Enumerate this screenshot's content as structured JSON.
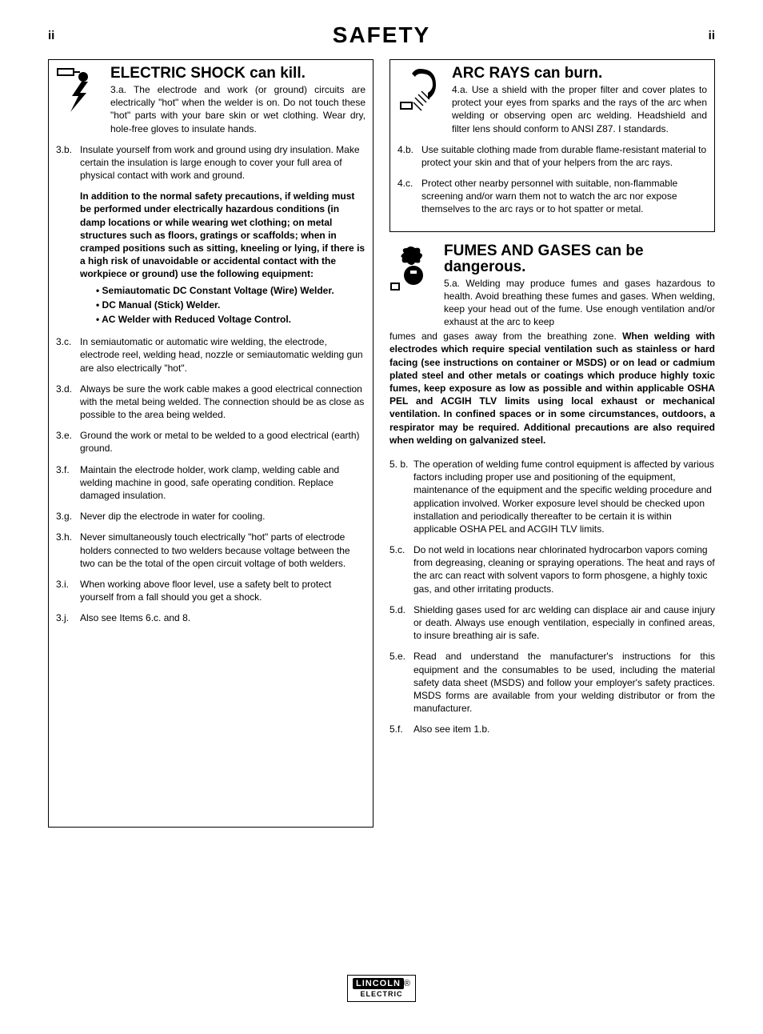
{
  "header": {
    "left": "ii",
    "title": "SAFETY",
    "right": "ii"
  },
  "left": {
    "shock": {
      "title": "ELECTRIC SHOCK can kill.",
      "items": [
        {
          "num": "3.a.",
          "text": "The electrode and work (or ground) circuits are electrically \"hot\" when the welder is on. Do not touch these \"hot\" parts with your bare skin or wet clothing. Wear dry, hole-free gloves to insulate hands."
        },
        {
          "num": "3.b.",
          "text": "Insulate yourself from work and ground using dry insulation. Make certain the insulation is large enough to cover your full area of physical contact with work and ground."
        },
        {
          "bold": true,
          "text": "In addition to the normal safety precautions, if welding must be performed under electrically hazardous conditions (in damp locations or while wearing wet clothing; on metal structures such as floors, gratings or scaffolds; when in cramped positions such as sitting, kneeling or lying, if there is a high risk of unavoidable or accidental contact with the workpiece or ground) use the following equipment:",
          "bullets": [
            "• Semiautomatic DC Constant Voltage (Wire) Welder.",
            "• DC Manual (Stick) Welder.",
            "• AC Welder with Reduced Voltage Control."
          ]
        },
        {
          "num": "3.c.",
          "text": "In semiautomatic or automatic wire welding, the electrode, electrode reel, welding head, nozzle or semiautomatic welding gun are also electrically \"hot\"."
        },
        {
          "num": "3.d.",
          "text": "Always be sure the work cable makes a good electrical connection with the metal being welded. The connection should be as close as possible to the area being welded."
        },
        {
          "num": "3.e.",
          "text": "Ground the work or metal to be welded to a good electrical (earth) ground."
        },
        {
          "num": "3.f.",
          "text": "Maintain the electrode holder, work clamp, welding cable  and welding machine in good, safe operating condition. Replace damaged insulation."
        },
        {
          "num": "3.g.",
          "text": "Never dip the electrode in water for cooling."
        },
        {
          "num": "3.h.",
          "text": "Never simultaneously touch electrically \"hot\" parts of electrode holders connected to two welders because voltage between the two can be the total of the open circuit voltage of both welders."
        },
        {
          "num": "3.i.",
          "text": "When working above floor level, use a safety belt to protect yourself from a fall should you get a shock."
        },
        {
          "num": "3.j.",
          "text": "Also see Items 6.c. and 8."
        }
      ]
    }
  },
  "right": {
    "arc": {
      "title": "ARC RAYS can burn.",
      "items": [
        {
          "num": "4.a.",
          "text": "Use a shield with the proper filter and cover plates to protect your eyes from sparks and the rays of the arc when welding or observing open arc welding. Headshield and filter lens should conform to ANSI Z87. I standards."
        },
        {
          "num": "4.b.",
          "text": "Use suitable clothing made from durable flame-resistant material to protect your skin and that of your helpers from the arc rays."
        },
        {
          "num": "4.c.",
          "text": "Protect other nearby personnel with suitable, non-flammable screening and/or warn them not to watch the arc nor expose themselves to the arc rays or to hot spatter or metal."
        }
      ]
    },
    "fumes": {
      "title": "FUMES AND GASES can be dangerous.",
      "first_num": "5.a.",
      "first_text": "Welding may produce fumes and gases hazardous to health. Avoid breathing these fumes and gases. When welding, keep your head out of the fume. Use enough ventilation and/or exhaust at the arc to keep",
      "cont_plain": "fumes and gases away from the breathing zone. ",
      "cont_bold": "When welding with electrodes which require special ventilation such as stainless or hard facing (see instructions on container or MSDS) or on lead or cadmium plated steel and other metals or coatings which produce highly toxic fumes, keep exposure as low as possible and within applicable OSHA PEL and ACGIH TLV limits using local exhaust or mechanical ventilation. In confined spaces or in some circumstances, outdoors, a respirator may be required. Additional precautions are also required when welding on galvanized steel.",
      "items": [
        {
          "num": "5. b.",
          "text": "The operation of welding fume control equipment is affected by various factors including proper use and positioning of the equipment, maintenance of the equipment and the specific welding procedure and application involved. Worker exposure level should be checked upon installation and periodically thereafter to be certain it is within applicable OSHA PEL and ACGIH TLV limits."
        },
        {
          "num": "5.c.",
          "text": "Do not weld in locations near chlorinated hydrocarbon vapors coming from degreasing, cleaning or spraying operations. The heat and rays of the arc can react with solvent vapors to form phosgene, a highly toxic gas, and other irritating products."
        },
        {
          "num": "5.d.",
          "text": "Shielding gases used for arc welding can displace air and cause injury or death. Always use enough ventilation, especially in confined areas, to insure breathing air is safe.",
          "justify": true
        },
        {
          "num": "5.e.",
          "text": "Read and understand the manufacturer's instructions for this equipment and the consumables to be used, including the material safety data sheet (MSDS) and follow your employer's safety practices. MSDS forms are available from your welding distributor or from the manufacturer.",
          "justify": true
        },
        {
          "num": "5.f.",
          "text": "Also see item 1.b."
        }
      ]
    }
  },
  "footer": {
    "brand_top": "LINCOLN",
    "brand_bot": "ELECTRIC"
  }
}
